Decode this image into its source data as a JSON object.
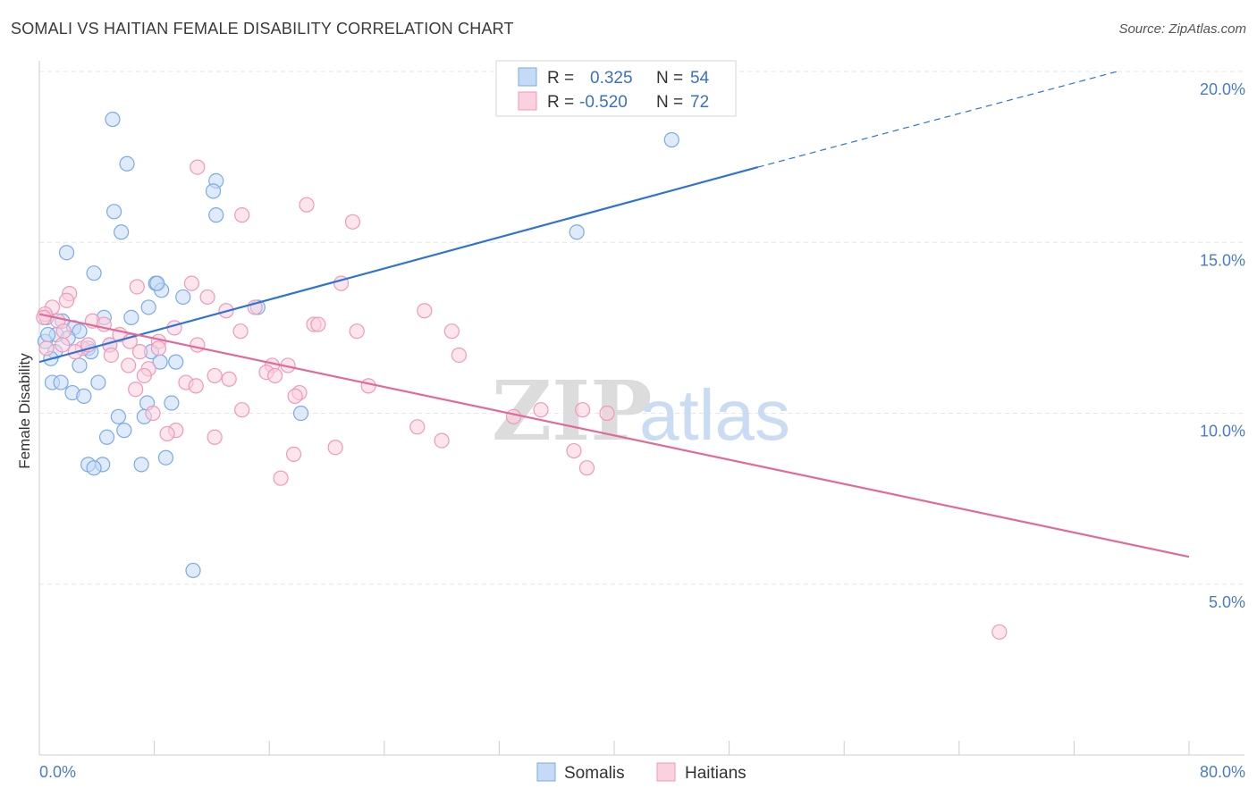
{
  "title": "SOMALI VS HAITIAN FEMALE DISABILITY CORRELATION CHART",
  "source": "Source: ZipAtlas.com",
  "watermark": {
    "zip": "ZIP",
    "atlas": "atlas"
  },
  "chart_data": {
    "type": "scatter",
    "title": "SOMALI VS HAITIAN FEMALE DISABILITY CORRELATION CHART",
    "xlabel": "",
    "ylabel": "Female Disability",
    "xlim": [
      0,
      80
    ],
    "ylim": [
      0,
      20
    ],
    "x_tick_labels": [
      {
        "value": 0,
        "label": "0.0%"
      },
      {
        "value": 80,
        "label": "80.0%"
      }
    ],
    "y_tick_labels": [
      {
        "value": 5,
        "label": "5.0%"
      },
      {
        "value": 10,
        "label": "10.0%"
      },
      {
        "value": 15,
        "label": "15.0%"
      },
      {
        "value": 20,
        "label": "20.0%"
      }
    ],
    "grid": true,
    "legend_placement": "top-center",
    "series": [
      {
        "name": "Somalis",
        "color": "#7aaae8",
        "fill": "#c5dbf5",
        "line_color": "#2e74d0",
        "R": "0.325",
        "N": "54",
        "trend": {
          "x0": 0,
          "y0": 11.5,
          "x1": 50,
          "y1": 17.2,
          "dash_to_x": 75,
          "dash_to_y": 20.0
        },
        "points": [
          [
            5.1,
            18.6
          ],
          [
            6.1,
            17.3
          ],
          [
            12.3,
            16.8
          ],
          [
            12.1,
            16.5
          ],
          [
            5.2,
            15.9
          ],
          [
            12.3,
            15.8
          ],
          [
            5.7,
            15.3
          ],
          [
            1.9,
            14.7
          ],
          [
            3.8,
            14.1
          ],
          [
            8.1,
            13.8
          ],
          [
            8.5,
            13.6
          ],
          [
            10.0,
            13.4
          ],
          [
            7.6,
            13.1
          ],
          [
            15.2,
            13.1
          ],
          [
            0.5,
            12.8
          ],
          [
            4.5,
            12.8
          ],
          [
            6.4,
            12.8
          ],
          [
            1.6,
            12.7
          ],
          [
            2.4,
            12.5
          ],
          [
            2.8,
            12.4
          ],
          [
            1.2,
            12.3
          ],
          [
            2.0,
            12.2
          ],
          [
            0.4,
            12.1
          ],
          [
            4.9,
            12.0
          ],
          [
            3.4,
            11.9
          ],
          [
            1.1,
            11.8
          ],
          [
            7.8,
            11.8
          ],
          [
            0.8,
            11.6
          ],
          [
            8.4,
            11.5
          ],
          [
            9.5,
            11.5
          ],
          [
            2.8,
            11.4
          ],
          [
            0.9,
            10.9
          ],
          [
            1.5,
            10.9
          ],
          [
            4.1,
            10.9
          ],
          [
            2.3,
            10.6
          ],
          [
            3.1,
            10.5
          ],
          [
            7.5,
            10.3
          ],
          [
            9.2,
            10.3
          ],
          [
            5.5,
            9.9
          ],
          [
            7.3,
            9.9
          ],
          [
            18.2,
            10.0
          ],
          [
            5.9,
            9.5
          ],
          [
            4.7,
            9.3
          ],
          [
            8.8,
            8.7
          ],
          [
            3.4,
            8.5
          ],
          [
            4.4,
            8.5
          ],
          [
            7.1,
            8.5
          ],
          [
            3.8,
            8.4
          ],
          [
            10.7,
            5.4
          ],
          [
            44.0,
            18.0
          ],
          [
            37.4,
            15.3
          ],
          [
            8.2,
            13.8
          ],
          [
            0.6,
            12.3
          ],
          [
            3.6,
            11.8
          ]
        ]
      },
      {
        "name": "Haitians",
        "color": "#f099b8",
        "fill": "#fbd0df",
        "line_color": "#e06a98",
        "R": "-0.520",
        "N": "72",
        "trend": {
          "x0": 0,
          "y0": 12.9,
          "x1": 80,
          "y1": 5.8
        },
        "points": [
          [
            11.0,
            17.2
          ],
          [
            18.6,
            16.1
          ],
          [
            14.1,
            15.8
          ],
          [
            21.8,
            15.6
          ],
          [
            10.6,
            13.8
          ],
          [
            21.0,
            13.8
          ],
          [
            6.8,
            13.7
          ],
          [
            2.1,
            13.5
          ],
          [
            1.9,
            13.3
          ],
          [
            11.7,
            13.4
          ],
          [
            0.9,
            13.1
          ],
          [
            13.0,
            13.0
          ],
          [
            15.0,
            13.1
          ],
          [
            26.8,
            13.0
          ],
          [
            0.4,
            12.9
          ],
          [
            1.3,
            12.7
          ],
          [
            3.7,
            12.7
          ],
          [
            4.5,
            12.6
          ],
          [
            19.1,
            12.6
          ],
          [
            19.4,
            12.6
          ],
          [
            9.4,
            12.5
          ],
          [
            14.0,
            12.4
          ],
          [
            22.1,
            12.4
          ],
          [
            28.7,
            12.4
          ],
          [
            1.7,
            12.4
          ],
          [
            5.6,
            12.3
          ],
          [
            6.3,
            12.1
          ],
          [
            8.3,
            12.1
          ],
          [
            4.9,
            12.0
          ],
          [
            11.0,
            12.0
          ],
          [
            1.6,
            12.0
          ],
          [
            3.0,
            11.9
          ],
          [
            0.5,
            11.9
          ],
          [
            8.3,
            11.9
          ],
          [
            2.5,
            11.8
          ],
          [
            5.0,
            11.7
          ],
          [
            29.2,
            11.7
          ],
          [
            6.2,
            11.4
          ],
          [
            16.2,
            11.4
          ],
          [
            17.3,
            11.4
          ],
          [
            7.6,
            11.3
          ],
          [
            15.8,
            11.2
          ],
          [
            7.3,
            11.1
          ],
          [
            16.4,
            11.1
          ],
          [
            12.2,
            11.1
          ],
          [
            13.2,
            11.0
          ],
          [
            10.2,
            10.9
          ],
          [
            10.9,
            10.8
          ],
          [
            22.9,
            10.8
          ],
          [
            6.7,
            10.7
          ],
          [
            18.1,
            10.6
          ],
          [
            17.8,
            10.5
          ],
          [
            14.1,
            10.1
          ],
          [
            34.9,
            10.1
          ],
          [
            37.8,
            10.1
          ],
          [
            39.5,
            10.0
          ],
          [
            7.9,
            10.0
          ],
          [
            33.0,
            9.9
          ],
          [
            26.3,
            9.6
          ],
          [
            9.5,
            9.5
          ],
          [
            8.9,
            9.4
          ],
          [
            12.2,
            9.3
          ],
          [
            28.0,
            9.2
          ],
          [
            20.6,
            9.0
          ],
          [
            37.2,
            8.9
          ],
          [
            17.7,
            8.8
          ],
          [
            38.1,
            8.4
          ],
          [
            16.8,
            8.1
          ],
          [
            66.8,
            3.6
          ],
          [
            0.3,
            12.8
          ],
          [
            3.4,
            12.0
          ],
          [
            7.0,
            11.8
          ]
        ]
      }
    ]
  },
  "legend": {
    "r_label": "R =",
    "n_label": "N =",
    "somalis_r": "0.325",
    "somalis_n": "54",
    "haitians_r": "-0.520",
    "haitians_n": "72"
  },
  "bottom_legend": {
    "somalis": "Somalis",
    "haitians": "Haitians"
  }
}
